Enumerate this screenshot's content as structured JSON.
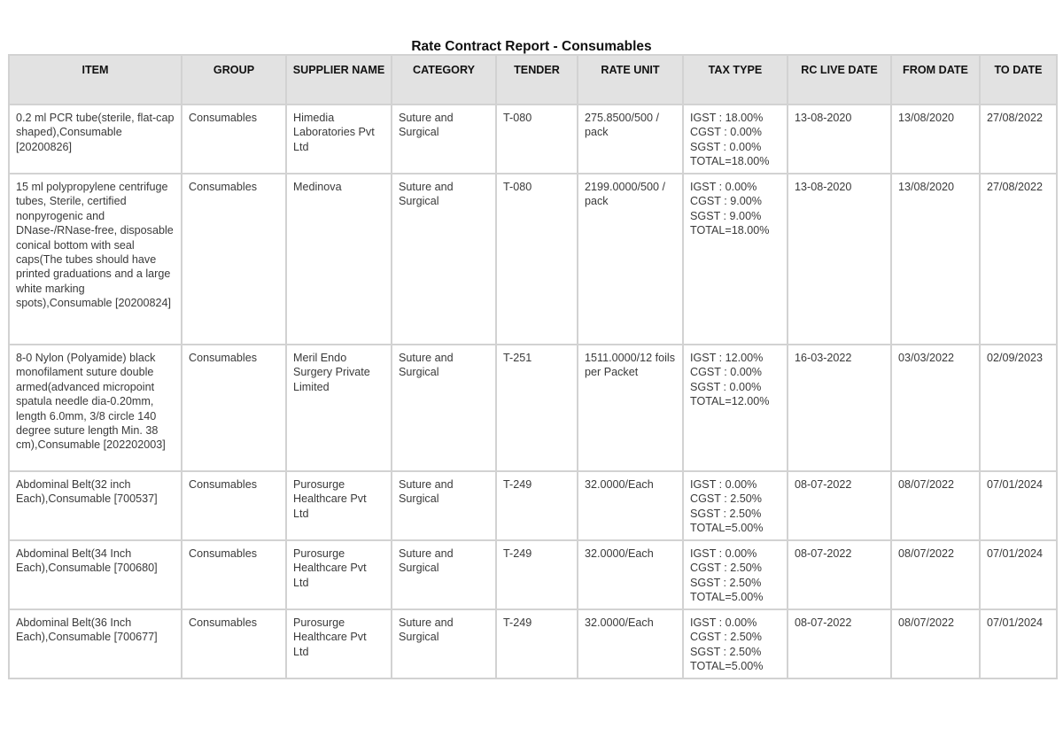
{
  "title": "Rate Contract Report - Consumables",
  "columns": [
    "ITEM",
    "GROUP",
    "SUPPLIER NAME",
    "CATEGORY",
    "TENDER",
    "RATE UNIT",
    "TAX TYPE",
    "RC LIVE DATE",
    "FROM DATE",
    "TO DATE"
  ],
  "rows": [
    {
      "item": "0.2 ml PCR tube(sterile, flat-cap shaped),Consumable [20200826]",
      "group": "Consumables",
      "supplier": "Himedia Laboratories Pvt Ltd",
      "category": "Suture and Surgical",
      "tender": "T-080",
      "rate_unit": "275.8500/500 / pack",
      "tax": [
        "IGST : 18.00%",
        "CGST : 0.00%",
        "SGST : 0.00%",
        "TOTAL=18.00%"
      ],
      "rc_live_date": "13-08-2020",
      "from_date": "13/08/2020",
      "to_date": "27/08/2022"
    },
    {
      "item": "15 ml polypropylene centrifuge tubes, Sterile, certified nonpyrogenic and DNase-/RNase-free, disposable conical bottom with seal caps(The tubes should have printed graduations and a large white marking spots),Consumable [20200824]",
      "group": "Consumables",
      "supplier": "Medinova",
      "category": "Suture and Surgical",
      "tender": "T-080",
      "rate_unit": "2199.0000/500 / pack",
      "tax": [
        "IGST : 0.00%",
        "CGST : 9.00%",
        "SGST : 9.00%",
        "TOTAL=18.00%"
      ],
      "rc_live_date": "13-08-2020",
      "from_date": "13/08/2020",
      "to_date": "27/08/2022"
    },
    {
      "item": "8-0 Nylon (Polyamide) black monofilament suture double armed(advanced micropoint spatula needle dia-0.20mm, length 6.0mm, 3/8 circle 140 degree suture length Min. 38 cm),Consumable [202202003]",
      "group": "Consumables",
      "supplier": "Meril Endo Surgery Private Limited",
      "category": "Suture and Surgical",
      "tender": "T-251",
      "rate_unit": "1511.0000/12 foils per  Packet",
      "tax": [
        "IGST : 12.00%",
        "CGST : 0.00%",
        "SGST : 0.00%",
        "TOTAL=12.00%"
      ],
      "rc_live_date": "16-03-2022",
      "from_date": "03/03/2022",
      "to_date": "02/09/2023"
    },
    {
      "item": "Abdominal Belt(32 inch Each),Consumable [700537]",
      "group": "Consumables",
      "supplier": "Purosurge Healthcare Pvt Ltd",
      "category": "Suture and Surgical",
      "tender": "T-249",
      "rate_unit": "32.0000/Each",
      "tax": [
        "IGST : 0.00%",
        "CGST : 2.50%",
        "SGST : 2.50%",
        "TOTAL=5.00%"
      ],
      "rc_live_date": "08-07-2022",
      "from_date": "08/07/2022",
      "to_date": "07/01/2024"
    },
    {
      "item": "Abdominal Belt(34 Inch Each),Consumable [700680]",
      "group": "Consumables",
      "supplier": "Purosurge Healthcare Pvt Ltd",
      "category": "Suture and Surgical",
      "tender": "T-249",
      "rate_unit": "32.0000/Each",
      "tax": [
        "IGST : 0.00%",
        "CGST : 2.50%",
        "SGST : 2.50%",
        "TOTAL=5.00%"
      ],
      "rc_live_date": "08-07-2022",
      "from_date": "08/07/2022",
      "to_date": "07/01/2024"
    },
    {
      "item": "Abdominal Belt(36 Inch Each),Consumable [700677]",
      "group": "Consumables",
      "supplier": "Purosurge Healthcare Pvt Ltd",
      "category": "Suture and Surgical",
      "tender": "T-249",
      "rate_unit": "32.0000/Each",
      "tax": [
        "IGST : 0.00%",
        "CGST : 2.50%",
        "SGST : 2.50%",
        "TOTAL=5.00%"
      ],
      "rc_live_date": "08-07-2022",
      "from_date": "08/07/2022",
      "to_date": "07/01/2024"
    }
  ]
}
